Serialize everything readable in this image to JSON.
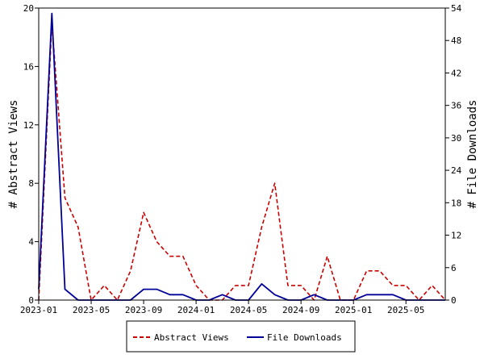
{
  "chart_data": {
    "type": "line",
    "x": [
      "2023-01",
      "2023-02",
      "2023-03",
      "2023-04",
      "2023-05",
      "2023-06",
      "2023-07",
      "2023-08",
      "2023-09",
      "2023-10",
      "2023-11",
      "2023-12",
      "2024-01",
      "2024-02",
      "2024-03",
      "2024-04",
      "2024-05",
      "2024-06",
      "2024-07",
      "2024-08",
      "2024-09",
      "2024-10",
      "2024-11",
      "2024-12",
      "2025-01",
      "2025-02",
      "2025-03",
      "2025-04",
      "2025-05",
      "2025-06",
      "2025-07",
      "2025-08"
    ],
    "x_ticks": [
      "2023-01",
      "2023-05",
      "2023-09",
      "2024-01",
      "2024-05",
      "2024-09",
      "2025-01",
      "2025-05"
    ],
    "xlim": [
      "2023-01",
      "2025-08"
    ],
    "series": [
      {
        "name": "Abstract Views",
        "axis": "left",
        "color": "#cc0000",
        "dash": true,
        "values": [
          0,
          19,
          7,
          5,
          0,
          1,
          0,
          2,
          6,
          4,
          3,
          3,
          1,
          0,
          0,
          1,
          1,
          5,
          8,
          1,
          1,
          0,
          3,
          0,
          0,
          2,
          2,
          1,
          1,
          0,
          1,
          0
        ]
      },
      {
        "name": "File Downloads",
        "axis": "right",
        "color": "#000099",
        "dash": false,
        "values": [
          2,
          53,
          2,
          0,
          0,
          0,
          0,
          0,
          2,
          2,
          1,
          1,
          0,
          0,
          1,
          0,
          0,
          3,
          1,
          0,
          0,
          1,
          0,
          0,
          0,
          1,
          1,
          1,
          0,
          0,
          0,
          0
        ]
      }
    ],
    "y_left": {
      "label": "# Abstract Views",
      "lim": [
        0,
        20
      ],
      "ticks": [
        "0",
        "4",
        "8",
        "12",
        "16",
        "20"
      ]
    },
    "y_right": {
      "label": "# File Downloads",
      "lim": [
        0,
        54
      ],
      "ticks": [
        "0",
        "6",
        "12",
        "18",
        "24",
        "30",
        "36",
        "42",
        "48",
        "54"
      ]
    },
    "grid": false,
    "legend": {
      "position": "bottom",
      "items": [
        "Abstract Views",
        "File Downloads"
      ]
    }
  }
}
